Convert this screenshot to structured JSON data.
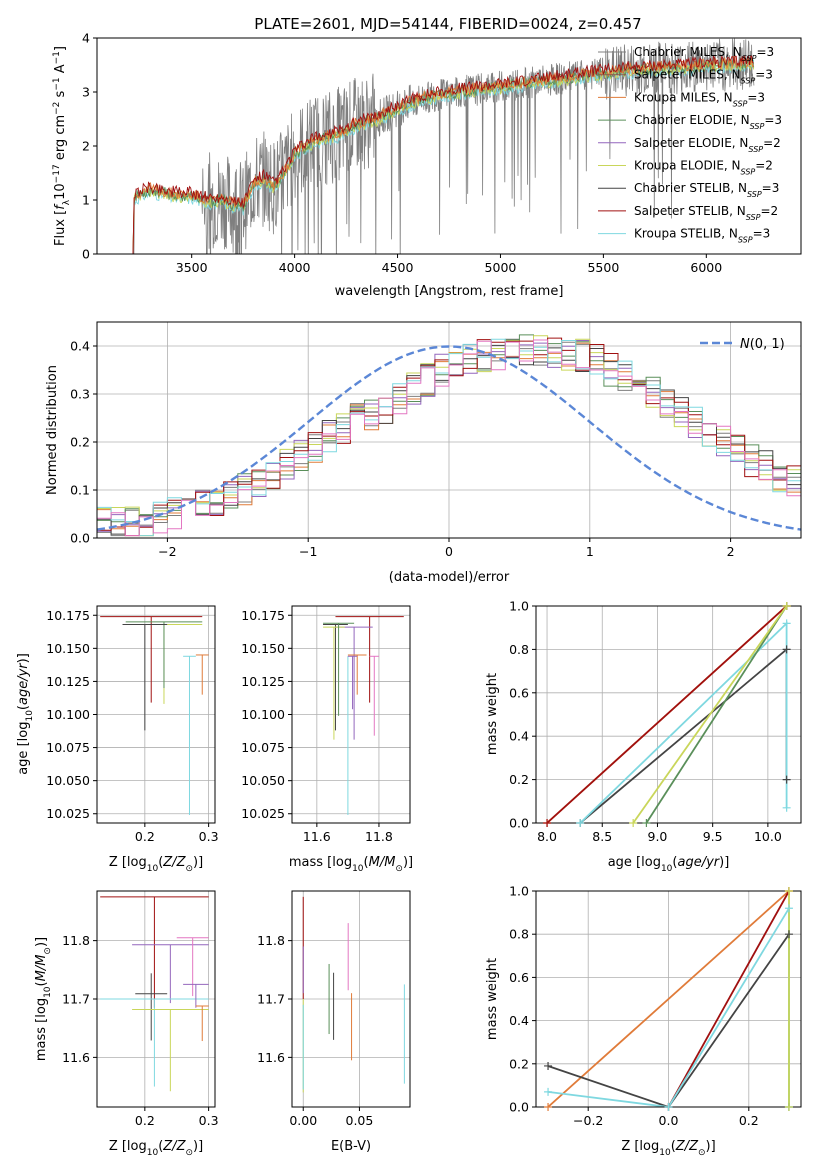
{
  "figure_title": "PLATE=2601, MJD=54144, FIBERID=0024, z=0.457",
  "colors": {
    "Chabrier MILES": "#7f7f7f",
    "Salpeter MILES": "#8c564b",
    "Kroupa MILES": "#e07b39",
    "Chabrier ELODIE": "#5a8f5a",
    "Salpeter ELODIE": "#9467bd",
    "Kroupa ELODIE": "#c9d65a",
    "Chabrier STELIB": "#444444",
    "Salpeter STELIB": "#a01010",
    "Kroupa STELIB": "#7fd8e0",
    "extra_pink": "#e377c2",
    "normal_curve": "#5b87d6"
  },
  "chart_data": [
    {
      "id": "spectrum",
      "type": "line",
      "title": "PLATE=2601, MJD=54144, FIBERID=0024, z=0.457",
      "xlabel": "wavelength [Angstrom, rest frame]",
      "ylabel": "Flux [f_λ 10^-17 erg cm^-2 s^-1 A^-1]",
      "xlim": [
        3040,
        6460
      ],
      "ylim": [
        0,
        4
      ],
      "xticks": [
        3500,
        4000,
        4500,
        5000,
        5500,
        6000
      ],
      "yticks": [
        0,
        1,
        2,
        3,
        4
      ],
      "grid": false,
      "legend_placement": "right",
      "data_wavelength_range": [
        3215,
        6232
      ],
      "data_notes": "noisy observed spectrum (grey) with smooth model fits",
      "model_envelope": {
        "x": [
          3215,
          3225,
          3250,
          3300,
          3350,
          3400,
          3450,
          3500,
          3550,
          3600,
          3650,
          3700,
          3750,
          3800,
          3850,
          3900,
          3950,
          4000,
          4100,
          4200,
          4300,
          4400,
          4500,
          4600,
          4700,
          4800,
          4900,
          5000,
          5100,
          5200,
          5300,
          5400,
          5500,
          5600,
          5700,
          5800,
          5900,
          6000,
          6100,
          6232
        ],
        "y": [
          0.95,
          1.05,
          1.12,
          1.18,
          1.15,
          1.1,
          1.08,
          1.08,
          1.02,
          0.98,
          1.0,
          0.92,
          0.88,
          1.3,
          1.4,
          1.25,
          1.5,
          1.85,
          2.1,
          2.2,
          2.4,
          2.5,
          2.7,
          2.85,
          2.95,
          3.0,
          3.05,
          3.1,
          3.15,
          3.2,
          3.25,
          3.3,
          3.35,
          3.4,
          3.42,
          3.45,
          3.45,
          3.5,
          3.5,
          3.55
        ]
      },
      "series": [
        {
          "name": "Chabrier MILES, N_SSP=3"
        },
        {
          "name": "Salpeter MILES, N_SSP=3"
        },
        {
          "name": "Kroupa MILES, N_SSP=3"
        },
        {
          "name": "Chabrier ELODIE, N_SSP=3"
        },
        {
          "name": "Salpeter ELODIE, N_SSP=2"
        },
        {
          "name": "Kroupa ELODIE, N_SSP=2"
        },
        {
          "name": "Chabrier STELIB, N_SSP=3"
        },
        {
          "name": "Salpeter STELIB, N_SSP=2"
        },
        {
          "name": "Kroupa STELIB, N_SSP=3"
        }
      ]
    },
    {
      "id": "residuals",
      "type": "line",
      "xlabel": "(data-model)/error",
      "ylabel": "Normed distribution",
      "xlim": [
        -2.5,
        2.5
      ],
      "ylim": [
        0,
        0.45
      ],
      "xticks": [
        -2,
        -1,
        0,
        1,
        2
      ],
      "yticks": [
        0.0,
        0.1,
        0.2,
        0.3,
        0.4
      ],
      "grid": true,
      "legend_placement": "top-right",
      "normal_curve_label": "N(0,1)",
      "bin_edges_start": -2.5,
      "bin_width": 0.1,
      "histogram_base": [
        0.03,
        0.03,
        0.03,
        0.03,
        0.04,
        0.05,
        0.06,
        0.07,
        0.08,
        0.09,
        0.1,
        0.12,
        0.13,
        0.15,
        0.17,
        0.19,
        0.21,
        0.23,
        0.25,
        0.26,
        0.27,
        0.29,
        0.31,
        0.33,
        0.35,
        0.36,
        0.37,
        0.38,
        0.38,
        0.39,
        0.39,
        0.39,
        0.39,
        0.38,
        0.38,
        0.37,
        0.35,
        0.34,
        0.32,
        0.3,
        0.28,
        0.26,
        0.24,
        0.22,
        0.2,
        0.18,
        0.16,
        0.15,
        0.13,
        0.12,
        0.11,
        0.1,
        0.09,
        0.08,
        0.07,
        0.07,
        0.06,
        0.06,
        0.05,
        0.05
      ]
    },
    {
      "id": "age_vs_Z",
      "type": "scatter",
      "xlabel": "Z [log10(Z/Z⊙)]",
      "ylabel": "age [log10(age/yr)]",
      "xlim": [
        0.125,
        0.31
      ],
      "ylim": [
        10.018,
        10.182
      ],
      "xticks": [
        0.2,
        0.3
      ],
      "yticks": [
        10.025,
        10.05,
        10.075,
        10.1,
        10.125,
        10.15,
        10.175
      ],
      "grid": true,
      "points": [
        {
          "x": 0.29,
          "xerr": 0.16,
          "y": 10.174,
          "yerr_lo": 0.065,
          "color": "Salpeter STELIB"
        },
        {
          "x": 0.29,
          "xerr": 0.12,
          "y": 10.168,
          "yerr_lo": 0.06,
          "color": "Kroupa ELODIE"
        },
        {
          "x": 0.29,
          "xerr": 0.12,
          "y": 10.17,
          "yerr_lo": 0.05,
          "color": "Chabrier ELODIE"
        },
        {
          "x": 0.235,
          "xerr": 0.07,
          "y": 10.168,
          "yerr_lo": 0.08,
          "color": "Chabrier STELIB"
        },
        {
          "x": 0.28,
          "xerr": 0.02,
          "y": 10.144,
          "yerr_lo": 0.12,
          "color": "Kroupa STELIB"
        },
        {
          "x": 0.3,
          "xerr": 0.02,
          "y": 10.145,
          "yerr_lo": 0.03,
          "color": "Kroupa MILES"
        }
      ]
    },
    {
      "id": "age_vs_mass",
      "type": "scatter",
      "xlabel": "mass [log10(M/M⊙)]",
      "xlim": [
        11.52,
        11.9
      ],
      "ylim": [
        10.018,
        10.182
      ],
      "xticks": [
        11.6,
        11.8
      ],
      "yticks": [
        10.025,
        10.05,
        10.075,
        10.1,
        10.125,
        10.15,
        10.175
      ],
      "grid": true,
      "points": [
        {
          "x": 11.88,
          "xerr": 0.22,
          "y": 10.174,
          "yerr_lo": 0.065,
          "color": "Salpeter STELIB"
        },
        {
          "x": 11.78,
          "xerr": 0.12,
          "y": 10.166,
          "yerr_lo": 0.085,
          "color": "Salpeter ELODIE"
        },
        {
          "x": 11.7,
          "xerr": 0.08,
          "y": 10.168,
          "yerr_lo": 0.08,
          "color": "Chabrier STELIB"
        },
        {
          "x": 11.69,
          "xerr": 0.07,
          "y": 10.166,
          "yerr_lo": 0.085,
          "color": "Kroupa ELODIE"
        },
        {
          "x": 11.72,
          "xerr": 0.1,
          "y": 10.169,
          "yerr_lo": 0.07,
          "color": "Chabrier ELODIE"
        },
        {
          "x": 11.7,
          "xerr": 0.0,
          "y": 10.144,
          "yerr_lo": 0.12,
          "color": "Kroupa STELIB"
        },
        {
          "x": 11.8,
          "xerr": 0.03,
          "y": 10.144,
          "yerr_lo": 0.06,
          "color": "extra_pink"
        },
        {
          "x": 11.76,
          "xerr": 0.06,
          "y": 10.145,
          "yerr_lo": 0.03,
          "color": "Kroupa MILES"
        },
        {
          "x": 11.73,
          "xerr": 0.03,
          "y": 10.144,
          "yerr_lo": 0.04,
          "color": "Salpeter ELODIE"
        }
      ]
    },
    {
      "id": "massweight_vs_age",
      "type": "line",
      "xlabel": "age [log10(age/yr)]",
      "ylabel": "mass weight",
      "xlim": [
        7.9,
        10.3
      ],
      "ylim": [
        0,
        1
      ],
      "xticks": [
        8.0,
        8.5,
        9.0,
        9.5,
        10.0
      ],
      "yticks": [
        0.0,
        0.2,
        0.4,
        0.6,
        0.8,
        1.0
      ],
      "grid": true,
      "series": [
        {
          "color": "Kroupa MILES",
          "x": [
            8.0,
            10.17
          ],
          "y": [
            0.0,
            1.0
          ]
        },
        {
          "color": "Salpeter STELIB",
          "x": [
            8.0,
            10.17
          ],
          "y": [
            0.0,
            1.0
          ]
        },
        {
          "color": "Chabrier STELIB",
          "x": [
            8.3,
            10.17,
            10.17
          ],
          "y": [
            0.0,
            0.8,
            0.2
          ]
        },
        {
          "color": "Kroupa STELIB",
          "x": [
            8.3,
            10.17,
            10.17
          ],
          "y": [
            0.0,
            0.92,
            0.07
          ]
        },
        {
          "color": "Chabrier ELODIE",
          "x": [
            8.9,
            10.17
          ],
          "y": [
            0.0,
            1.0
          ]
        },
        {
          "color": "Kroupa ELODIE",
          "x": [
            8.78,
            10.17
          ],
          "y": [
            0.0,
            1.0
          ]
        }
      ]
    },
    {
      "id": "mass_vs_Z",
      "type": "scatter",
      "xlabel": "Z [log10(Z/Z⊙)]",
      "ylabel": "mass [log10(M/M⊙)]",
      "xlim": [
        0.125,
        0.31
      ],
      "ylim": [
        11.515,
        11.885
      ],
      "xticks": [
        0.2,
        0.3
      ],
      "yticks": [
        11.6,
        11.7,
        11.8
      ],
      "grid": true,
      "points": [
        {
          "x": 0.3,
          "xerr": 0.17,
          "y": 11.875,
          "yerr_lo": 0.19,
          "color": "Salpeter STELIB"
        },
        {
          "x": 0.3,
          "xerr": 0.12,
          "y": 11.793,
          "yerr_lo": 0.1,
          "color": "Salpeter ELODIE"
        },
        {
          "x": 0.3,
          "xerr": 0.05,
          "y": 11.805,
          "yerr_lo": 0.1,
          "color": "extra_pink"
        },
        {
          "x": 0.235,
          "xerr": 0.05,
          "y": 11.709,
          "yerr_up": 0.035,
          "yerr_lo": 0.08,
          "color": "Chabrier STELIB"
        },
        {
          "x": 0.3,
          "xerr": 0.17,
          "y": 11.7,
          "yerr_lo": 0.15,
          "color": "Kroupa STELIB"
        },
        {
          "x": 0.3,
          "xerr": 0.12,
          "y": 11.682,
          "yerr_lo": 0.14,
          "color": "Kroupa ELODIE"
        },
        {
          "x": 0.3,
          "xerr": 0.04,
          "y": 11.725,
          "yerr_lo": 0.04,
          "color": "Salpeter ELODIE"
        },
        {
          "x": 0.3,
          "xerr": 0.02,
          "y": 11.688,
          "yerr_lo": 0.06,
          "color": "Kroupa MILES"
        }
      ]
    },
    {
      "id": "mass_vs_EBV",
      "type": "scatter",
      "xlabel": "E(B-V)",
      "xlim": [
        -0.01,
        0.095
      ],
      "ylim": [
        11.515,
        11.885
      ],
      "xticks": [
        0.0,
        0.05
      ],
      "yticks": [
        11.6,
        11.7,
        11.8
      ],
      "grid": true,
      "points": [
        {
          "x": 0.0,
          "y_lo": 11.7,
          "y_hi": 11.875,
          "color": "Salpeter STELIB"
        },
        {
          "x": 0.0,
          "y_lo": 11.71,
          "y_hi": 11.79,
          "color": "Salpeter ELODIE"
        },
        {
          "x": 0.0,
          "y_lo": 11.54,
          "y_hi": 11.7,
          "color": "Kroupa ELODIE"
        },
        {
          "x": 0.0,
          "y_lo": 11.545,
          "y_hi": 11.69,
          "color": "Kroupa STELIB"
        },
        {
          "x": 0.023,
          "y_lo": 11.64,
          "y_hi": 11.76,
          "color": "Chabrier ELODIE"
        },
        {
          "x": 0.027,
          "y_lo": 11.63,
          "y_hi": 11.745,
          "color": "Chabrier STELIB"
        },
        {
          "x": 0.04,
          "y_lo": 11.715,
          "y_hi": 11.83,
          "color": "extra_pink"
        },
        {
          "x": 0.043,
          "y_lo": 11.595,
          "y_hi": 11.71,
          "color": "Kroupa MILES"
        },
        {
          "x": 0.09,
          "y_lo": 11.555,
          "y_hi": 11.725,
          "color": "Kroupa STELIB"
        }
      ]
    },
    {
      "id": "massweight_vs_Z",
      "type": "line",
      "xlabel": "Z [log10(Z/Z⊙)]",
      "ylabel": "mass weight",
      "xlim": [
        -0.33,
        0.33
      ],
      "ylim": [
        0,
        1
      ],
      "xticks": [
        -0.2,
        0.0,
        0.2
      ],
      "yticks": [
        0.0,
        0.2,
        0.4,
        0.6,
        0.8,
        1.0
      ],
      "grid": true,
      "series": [
        {
          "color": "Kroupa MILES",
          "x": [
            -0.3,
            0.3
          ],
          "y": [
            0.0,
            1.0
          ]
        },
        {
          "color": "Salpeter STELIB",
          "x": [
            0.0,
            0.3
          ],
          "y": [
            0.0,
            1.0
          ]
        },
        {
          "color": "Chabrier STELIB",
          "x": [
            -0.3,
            0.0,
            0.3,
            0.3
          ],
          "y": [
            0.19,
            0.0,
            0.8,
            0.0
          ]
        },
        {
          "color": "Kroupa STELIB",
          "x": [
            -0.3,
            0.0,
            0.3,
            0.3
          ],
          "y": [
            0.07,
            0.0,
            0.92,
            0.0
          ]
        },
        {
          "color": "Kroupa ELODIE",
          "x": [
            0.3,
            0.3
          ],
          "y": [
            0.0,
            1.0
          ]
        }
      ]
    }
  ]
}
